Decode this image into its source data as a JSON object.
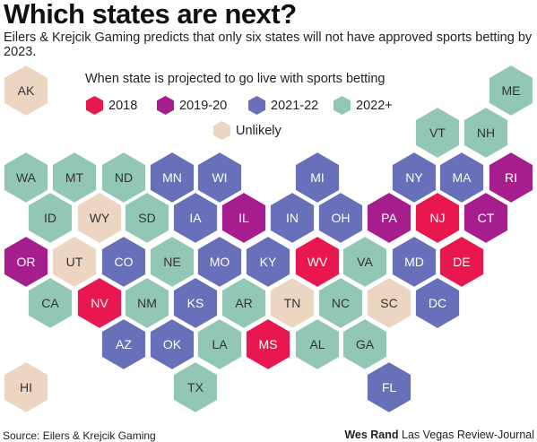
{
  "header": {
    "title": "Which states are next?",
    "subtitle": "Eilers & Krejcik Gaming predicts that only six states will not have approved sports betting by 2023."
  },
  "legend": {
    "title": "When state is projected to go live with sports betting",
    "items": [
      {
        "label": "2018",
        "color": "#e8174f"
      },
      {
        "label": "2019-20",
        "color": "#a61e8d"
      },
      {
        "label": "2021-22",
        "color": "#6770b8"
      },
      {
        "label": "2022+",
        "color": "#93c7b5"
      },
      {
        "label": "Unlikely",
        "color": "#ecd6c1"
      }
    ]
  },
  "chart_data": {
    "type": "hex tile map",
    "categories": [
      "2018",
      "2019-20",
      "2021-22",
      "2022+",
      "Unlikely"
    ],
    "states": [
      {
        "abbr": "AK",
        "category": "Unlikely"
      },
      {
        "abbr": "ME",
        "category": "2022+"
      },
      {
        "abbr": "VT",
        "category": "2022+"
      },
      {
        "abbr": "NH",
        "category": "2022+"
      },
      {
        "abbr": "WA",
        "category": "2022+"
      },
      {
        "abbr": "MT",
        "category": "2022+"
      },
      {
        "abbr": "ND",
        "category": "2022+"
      },
      {
        "abbr": "MN",
        "category": "2021-22"
      },
      {
        "abbr": "WI",
        "category": "2021-22"
      },
      {
        "abbr": "MI",
        "category": "2021-22"
      },
      {
        "abbr": "NY",
        "category": "2021-22"
      },
      {
        "abbr": "MA",
        "category": "2021-22"
      },
      {
        "abbr": "RI",
        "category": "2019-20"
      },
      {
        "abbr": "ID",
        "category": "2022+"
      },
      {
        "abbr": "WY",
        "category": "Unlikely"
      },
      {
        "abbr": "SD",
        "category": "2022+"
      },
      {
        "abbr": "IA",
        "category": "2021-22"
      },
      {
        "abbr": "IL",
        "category": "2019-20"
      },
      {
        "abbr": "IN",
        "category": "2021-22"
      },
      {
        "abbr": "OH",
        "category": "2021-22"
      },
      {
        "abbr": "PA",
        "category": "2019-20"
      },
      {
        "abbr": "NJ",
        "category": "2018"
      },
      {
        "abbr": "CT",
        "category": "2019-20"
      },
      {
        "abbr": "OR",
        "category": "2019-20"
      },
      {
        "abbr": "UT",
        "category": "Unlikely"
      },
      {
        "abbr": "CO",
        "category": "2021-22"
      },
      {
        "abbr": "NE",
        "category": "2022+"
      },
      {
        "abbr": "MO",
        "category": "2021-22"
      },
      {
        "abbr": "KY",
        "category": "2021-22"
      },
      {
        "abbr": "WV",
        "category": "2018"
      },
      {
        "abbr": "VA",
        "category": "2022+"
      },
      {
        "abbr": "MD",
        "category": "2021-22"
      },
      {
        "abbr": "DE",
        "category": "2018"
      },
      {
        "abbr": "CA",
        "category": "2022+"
      },
      {
        "abbr": "NV",
        "category": "2018"
      },
      {
        "abbr": "NM",
        "category": "2022+"
      },
      {
        "abbr": "KS",
        "category": "2021-22"
      },
      {
        "abbr": "AR",
        "category": "2022+"
      },
      {
        "abbr": "TN",
        "category": "Unlikely"
      },
      {
        "abbr": "NC",
        "category": "2022+"
      },
      {
        "abbr": "SC",
        "category": "Unlikely"
      },
      {
        "abbr": "DC",
        "category": "2021-22"
      },
      {
        "abbr": "AZ",
        "category": "2021-22"
      },
      {
        "abbr": "OK",
        "category": "2021-22"
      },
      {
        "abbr": "LA",
        "category": "2022+"
      },
      {
        "abbr": "MS",
        "category": "2018"
      },
      {
        "abbr": "AL",
        "category": "2022+"
      },
      {
        "abbr": "GA",
        "category": "2022+"
      },
      {
        "abbr": "HI",
        "category": "Unlikely"
      },
      {
        "abbr": "TX",
        "category": "2022+"
      },
      {
        "abbr": "FL",
        "category": "2021-22"
      }
    ]
  },
  "footer": {
    "source": "Source: Eilers & Krejcik Gaming",
    "author": "Wes Rand",
    "publication": "Las Vegas Review-Journal"
  }
}
